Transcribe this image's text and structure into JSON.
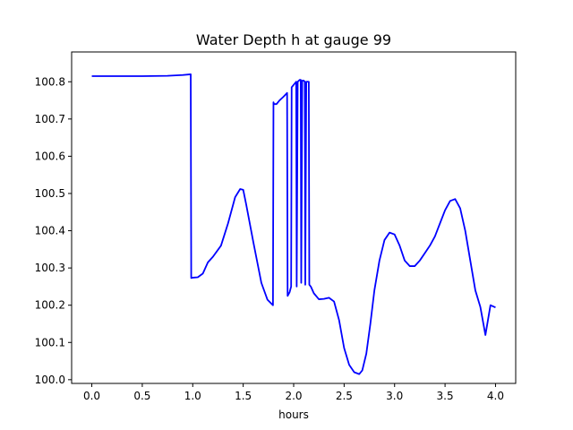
{
  "chart_data": {
    "type": "line",
    "title": "Water Depth h at gauge 99",
    "xlabel": "hours",
    "ylabel": "",
    "xlim": [
      -0.2,
      4.2
    ],
    "ylim": [
      99.99,
      100.88
    ],
    "x_ticks": [
      0.0,
      0.5,
      1.0,
      1.5,
      2.0,
      2.5,
      3.0,
      3.5,
      4.0
    ],
    "x_tick_labels": [
      "0.0",
      "0.5",
      "1.0",
      "1.5",
      "2.0",
      "2.5",
      "3.0",
      "3.5",
      "4.0"
    ],
    "y_ticks": [
      100.0,
      100.1,
      100.2,
      100.3,
      100.4,
      100.5,
      100.6,
      100.7,
      100.8
    ],
    "y_tick_labels": [
      "100.0",
      "100.1",
      "100.2",
      "100.3",
      "100.4",
      "100.5",
      "100.6",
      "100.7",
      "100.8"
    ],
    "grid": false,
    "color": "#0000ff",
    "series": [
      {
        "x": [
          0.0,
          0.5,
          0.75,
          0.9,
          0.98,
          0.985,
          1.0,
          1.05,
          1.1,
          1.15,
          1.2,
          1.28,
          1.35,
          1.42,
          1.47,
          1.5,
          1.53,
          1.6,
          1.68,
          1.74,
          1.795,
          1.8,
          1.805,
          1.83,
          1.86,
          1.9,
          1.935,
          1.94,
          1.96,
          1.975,
          1.98,
          2.01,
          2.025,
          2.03,
          2.04,
          2.06,
          2.07,
          2.075,
          2.085,
          2.1,
          2.11,
          2.115,
          2.125,
          2.14,
          2.15,
          2.155,
          2.17,
          2.2,
          2.25,
          2.3,
          2.35,
          2.4,
          2.45,
          2.5,
          2.55,
          2.6,
          2.65,
          2.68,
          2.72,
          2.76,
          2.8,
          2.85,
          2.9,
          2.95,
          3.0,
          3.05,
          3.1,
          3.15,
          3.2,
          3.25,
          3.3,
          3.35,
          3.4,
          3.45,
          3.5,
          3.55,
          3.6,
          3.65,
          3.7,
          3.75,
          3.8,
          3.85,
          3.9,
          3.95,
          4.0
        ],
        "y": [
          100.815,
          100.815,
          100.816,
          100.818,
          100.82,
          100.273,
          100.274,
          100.275,
          100.285,
          100.315,
          100.33,
          100.36,
          100.42,
          100.49,
          100.512,
          100.51,
          100.47,
          100.37,
          100.26,
          100.215,
          100.2,
          100.745,
          100.74,
          100.74,
          100.75,
          100.76,
          100.77,
          100.225,
          100.235,
          100.25,
          100.785,
          100.795,
          100.8,
          100.25,
          100.8,
          100.805,
          100.805,
          100.26,
          100.803,
          100.803,
          100.8,
          100.255,
          100.8,
          100.8,
          100.8,
          100.255,
          100.25,
          100.232,
          100.216,
          100.217,
          100.22,
          100.21,
          100.16,
          100.085,
          100.04,
          100.02,
          100.015,
          100.025,
          100.07,
          100.15,
          100.24,
          100.32,
          100.375,
          100.395,
          100.39,
          100.36,
          100.32,
          100.305,
          100.305,
          100.32,
          100.34,
          100.36,
          100.385,
          100.42,
          100.455,
          100.48,
          100.485,
          100.46,
          100.4,
          100.32,
          100.24,
          100.195,
          100.12,
          100.2,
          100.194
        ]
      }
    ]
  }
}
